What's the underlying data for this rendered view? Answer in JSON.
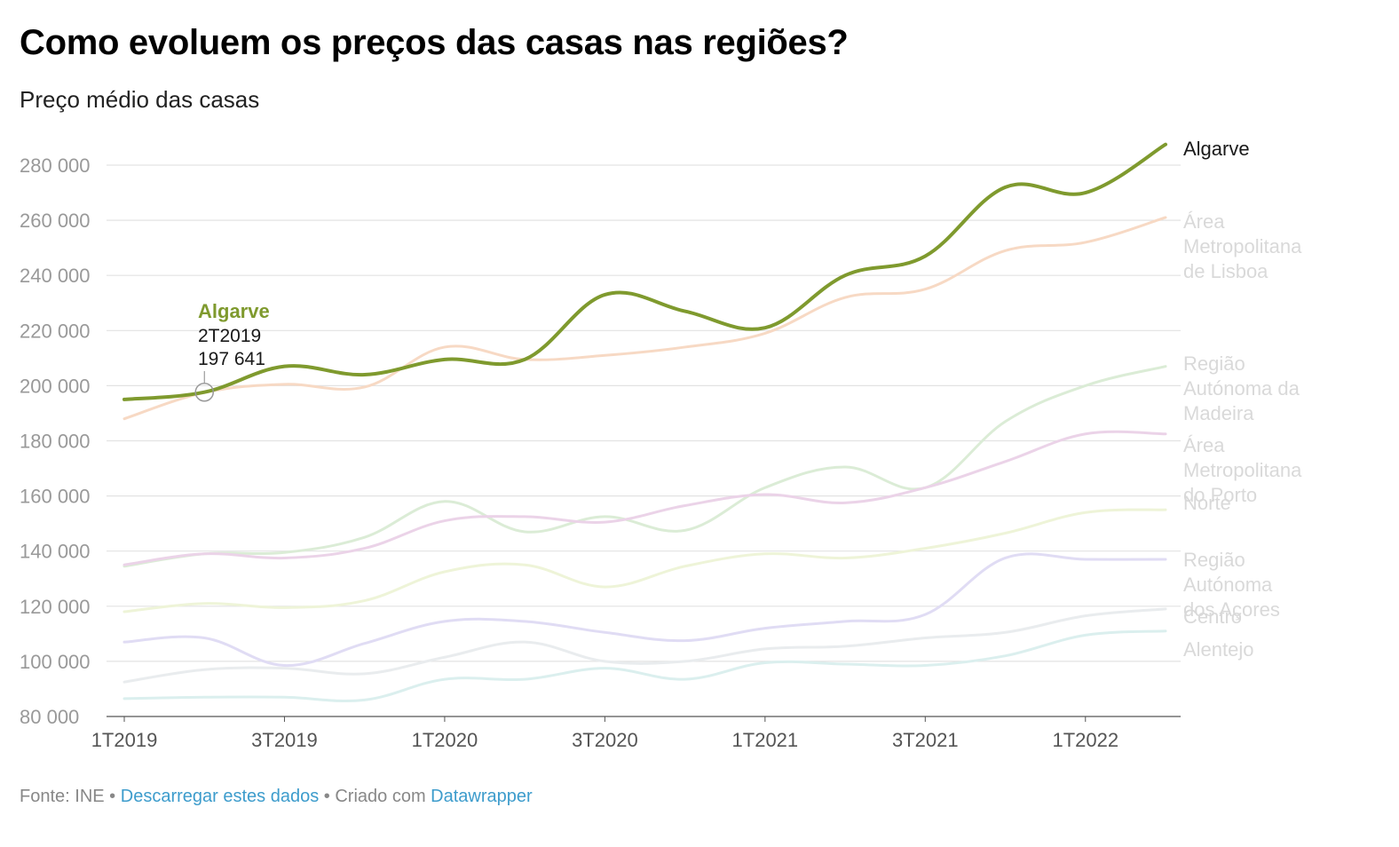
{
  "title": "Como evoluem os preços das casas nas regiões?",
  "subtitle": "Preço médio das casas",
  "footer": {
    "source": "Fonte: INE",
    "separator": "•",
    "download_link": "Descarregar estes dados",
    "created_with": "Criado com",
    "tool_link": "Datawrapper"
  },
  "chart_data": {
    "type": "line",
    "title": "Como evoluem os preços das casas nas regiões?",
    "subtitle": "Preço médio das casas",
    "xlabel": "",
    "ylabel": "",
    "ylim": [
      80000,
      280000
    ],
    "y_ticks": [
      80000,
      100000,
      120000,
      140000,
      160000,
      180000,
      200000,
      220000,
      240000,
      260000,
      280000
    ],
    "y_tick_labels": [
      "80 000",
      "100 000",
      "120 000",
      "140 000",
      "160 000",
      "180 000",
      "200 000",
      "220 000",
      "240 000",
      "260 000",
      "280 000"
    ],
    "x": [
      "1T2019",
      "2T2019",
      "3T2019",
      "4T2019",
      "1T2020",
      "2T2020",
      "3T2020",
      "4T2020",
      "1T2021",
      "2T2021",
      "3T2021",
      "4T2021",
      "1T2022",
      "2T2022"
    ],
    "x_tick_labels": [
      "1T2019",
      "3T2019",
      "1T2020",
      "3T2020",
      "1T2021",
      "3T2021",
      "1T2022"
    ],
    "grid": true,
    "legend": "direct labels at line ends (right)",
    "highlight": "Algarve",
    "series": [
      {
        "name": "Algarve",
        "color": "#7f9a2e",
        "highlight": true,
        "values": [
          195000,
          197641,
          207000,
          204000,
          209500,
          209500,
          233000,
          227000,
          221000,
          240000,
          247000,
          272000,
          270000,
          287500
        ]
      },
      {
        "name": "Área Metropolitana de Lisboa",
        "color": "#f7d9c4",
        "values": [
          188000,
          197500,
          200500,
          199500,
          214000,
          209500,
          211000,
          214000,
          219000,
          232000,
          235000,
          249000,
          252000,
          261000
        ]
      },
      {
        "name": "Região Autónoma da Madeira",
        "color": "#dbecd6",
        "values": [
          134500,
          139000,
          139500,
          145000,
          158000,
          147000,
          152500,
          147500,
          163000,
          170500,
          163000,
          187000,
          200000,
          207000
        ]
      },
      {
        "name": "Área Metropolitana do Porto",
        "color": "#ebd3e8",
        "values": [
          135000,
          139000,
          137500,
          141000,
          151000,
          152500,
          150500,
          156500,
          160500,
          157500,
          163000,
          172500,
          182500,
          182500
        ]
      },
      {
        "name": "Norte",
        "color": "#eef4d8",
        "values": [
          118000,
          121000,
          119500,
          122000,
          132500,
          135000,
          127000,
          134500,
          139000,
          137500,
          141000,
          146500,
          154000,
          155000
        ]
      },
      {
        "name": "Região Autónoma dos Açores",
        "color": "#e0dcf4",
        "values": [
          107000,
          108500,
          98500,
          106500,
          114500,
          114500,
          110500,
          107500,
          112000,
          114500,
          117000,
          137500,
          137000,
          137000
        ]
      },
      {
        "name": "Centro",
        "color": "#e9ecee",
        "values": [
          92500,
          97000,
          97500,
          95500,
          101500,
          107000,
          100000,
          100000,
          104500,
          105500,
          108500,
          110500,
          116500,
          119000
        ]
      },
      {
        "name": "Alentejo",
        "color": "#dbefee",
        "values": [
          86500,
          87000,
          87000,
          86000,
          93500,
          93500,
          97500,
          93500,
          99500,
          99000,
          98500,
          102000,
          109500,
          111000
        ]
      }
    ],
    "end_labels": [
      {
        "series": "Algarve",
        "lines": [
          "Algarve"
        ],
        "color": "#1a1a1a"
      },
      {
        "series": "Área Metropolitana de Lisboa",
        "lines": [
          "Área",
          "Metropolitana",
          "de Lisboa"
        ],
        "color": "#d9d9d9"
      },
      {
        "series": "Região Autónoma da Madeira",
        "lines": [
          "Região",
          "Autónoma da",
          "Madeira"
        ],
        "color": "#d9d9d9"
      },
      {
        "series": "Área Metropolitana do Porto",
        "lines": [
          "Área",
          "Metropolitana",
          "do Porto"
        ],
        "color": "#d9d9d9"
      },
      {
        "series": "Norte",
        "lines": [
          "Norte"
        ],
        "color": "#d9d9d9"
      },
      {
        "series": "Região Autónoma dos Açores",
        "lines": [
          "Região",
          "Autónoma",
          "dos Açores"
        ],
        "color": "#d9d9d9"
      },
      {
        "series": "Centro",
        "lines": [
          "Centro"
        ],
        "color": "#d9d9d9"
      },
      {
        "series": "Alentejo",
        "lines": [
          "Alentejo"
        ],
        "color": "#d9d9d9"
      }
    ],
    "annotation": {
      "series": "Algarve",
      "x": "2T2019",
      "value": 197641,
      "label_name": "Algarve",
      "label_period": "2T2019",
      "label_value": "197 641"
    }
  }
}
